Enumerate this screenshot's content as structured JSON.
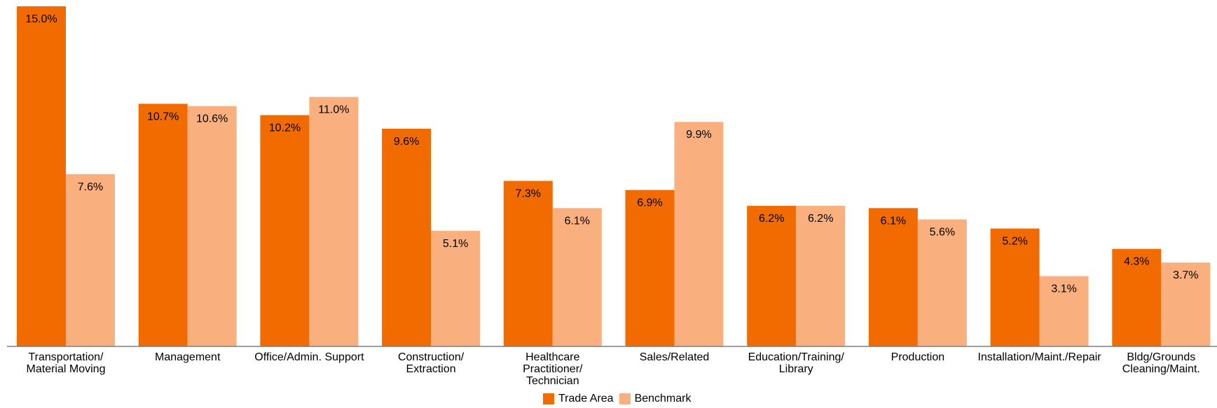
{
  "chart_data": {
    "type": "bar",
    "categories": [
      [
        "Transportation/",
        "Material Moving"
      ],
      [
        "Management"
      ],
      [
        "Office/Admin. Support"
      ],
      [
        "Construction/",
        "Extraction"
      ],
      [
        "Healthcare",
        "Practitioner/",
        "Technician"
      ],
      [
        "Sales/Related"
      ],
      [
        "Education/Training/",
        "Library"
      ],
      [
        "Production"
      ],
      [
        "Installation/Maint./Repair"
      ],
      [
        "Bldg/Grounds",
        "Cleaning/Maint."
      ]
    ],
    "series": [
      {
        "name": "Trade Area",
        "color": "#f26b00",
        "values": [
          15.0,
          10.7,
          10.2,
          9.6,
          7.3,
          6.9,
          6.2,
          6.1,
          5.2,
          4.3
        ],
        "labels": [
          "15.0%",
          "10.7%",
          "10.2%",
          "9.6%",
          "7.3%",
          "6.9%",
          "6.2%",
          "6.1%",
          "5.2%",
          "4.3%"
        ]
      },
      {
        "name": "Benchmark",
        "color": "#f9b07e",
        "values": [
          7.6,
          10.6,
          11.0,
          5.1,
          6.1,
          9.9,
          6.2,
          5.6,
          3.1,
          3.7
        ],
        "labels": [
          "7.6%",
          "10.6%",
          "11.0%",
          "5.1%",
          "6.1%",
          "9.9%",
          "6.2%",
          "5.6%",
          "3.1%",
          "3.7%"
        ]
      }
    ],
    "ylim": [
      0,
      15
    ],
    "grid": false,
    "legend_position": "bottom"
  }
}
